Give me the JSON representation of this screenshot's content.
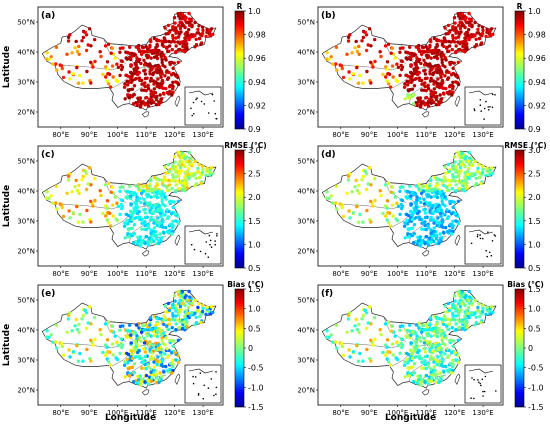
{
  "figure": {
    "x_axis_label": "Longitude",
    "y_axis_label": "Latitude",
    "lon_ticks": [
      "80°E",
      "90°E",
      "100°E",
      "110°E",
      "120°E",
      "130°E"
    ],
    "lat_ticks": [
      "20°N",
      "30°N",
      "40°N",
      "50°N"
    ],
    "rows": [
      {
        "colorbar": {
          "title": "R",
          "ticks": [
            "1.0",
            "0.98",
            "0.96",
            "0.94",
            "0.92",
            "0.9"
          ],
          "range": [
            0.9,
            1.0
          ]
        }
      },
      {
        "colorbar": {
          "title": "RMSE (°C)",
          "ticks": [
            "3.0",
            "2.5",
            "2.0",
            "1.5",
            "1.0",
            "0.5"
          ],
          "range": [
            0.5,
            3.0
          ]
        }
      },
      {
        "colorbar": {
          "title": "Bias (°C)",
          "ticks": [
            "1.5",
            "1.0",
            "0.5",
            "0",
            "-0.5",
            "-1.0",
            "-1.5"
          ],
          "range": [
            -1.5,
            1.5
          ]
        }
      }
    ],
    "panels": [
      {
        "label": "(a)",
        "metric": "R"
      },
      {
        "label": "(b)",
        "metric": "R"
      },
      {
        "label": "(c)",
        "metric": "RMSE"
      },
      {
        "label": "(d)",
        "metric": "RMSE"
      },
      {
        "label": "(e)",
        "metric": "Bias"
      },
      {
        "label": "(f)",
        "metric": "Bias"
      }
    ],
    "colormap": "jet"
  }
}
